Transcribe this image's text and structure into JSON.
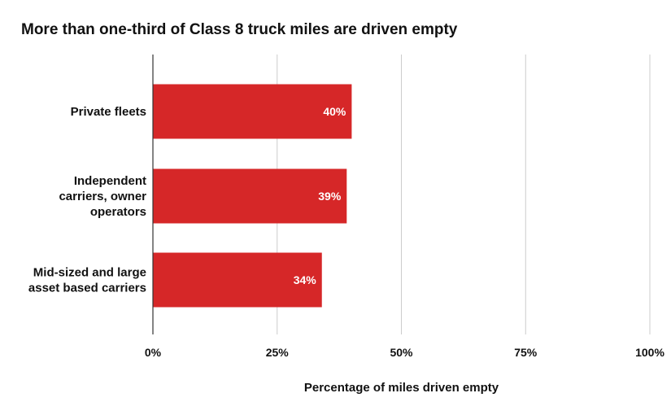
{
  "chart_data": {
    "type": "bar",
    "orientation": "horizontal",
    "title": "More than one-third of Class 8 truck miles are driven empty",
    "xlabel": "Percentage of miles driven empty",
    "ylabel": "",
    "categories": [
      [
        "Private fleets"
      ],
      [
        "Independent",
        "carriers, owner",
        "operators"
      ],
      [
        "Mid-sized and large",
        "asset based carriers"
      ]
    ],
    "values": [
      40,
      39,
      34
    ],
    "data_labels": [
      "40%",
      "39%",
      "34%"
    ],
    "xlim": [
      0,
      100
    ],
    "xticks": [
      0,
      25,
      50,
      75,
      100
    ],
    "xtick_labels": [
      "0%",
      "25%",
      "50%",
      "75%",
      "100%"
    ],
    "grid": "vertical",
    "legend": "none",
    "bar_color": "#d62728",
    "label_color": "#ffffff",
    "grid_color": "#cccccc",
    "axis_color": "#333333",
    "text_color": "#111111"
  }
}
